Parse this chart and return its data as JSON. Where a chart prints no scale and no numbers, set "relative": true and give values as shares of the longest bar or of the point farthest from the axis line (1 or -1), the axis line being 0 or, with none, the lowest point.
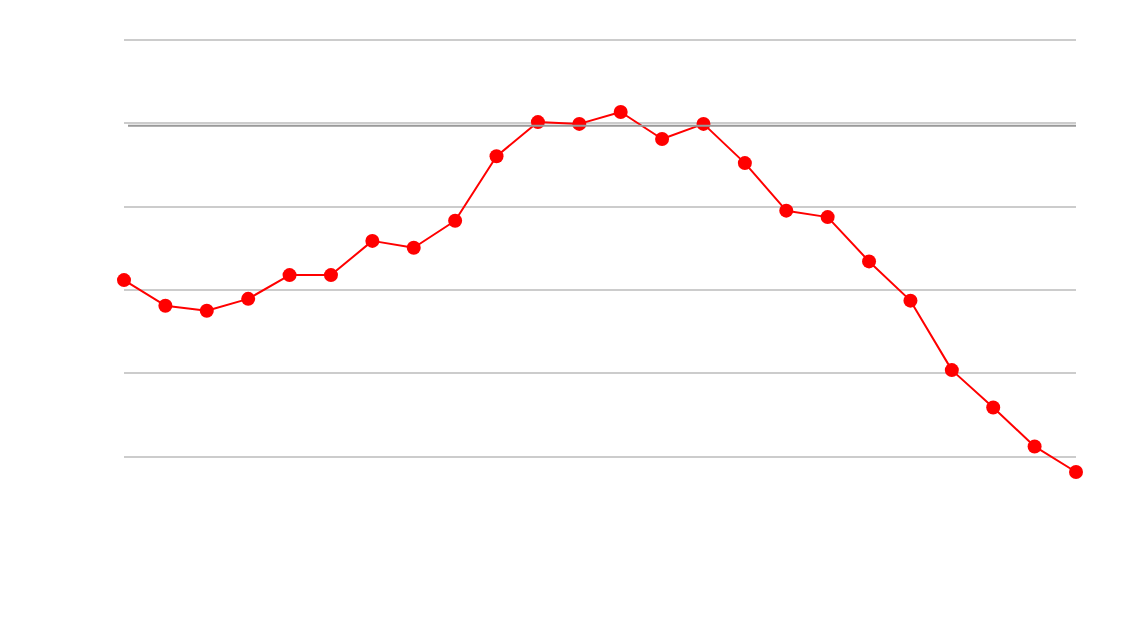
{
  "chart_data": {
    "type": "line",
    "relative": true,
    "categories": [
      null,
      null,
      null,
      null,
      null,
      null,
      null,
      null,
      null,
      null,
      null,
      null,
      null,
      null,
      null,
      null,
      null,
      null,
      null,
      null,
      null,
      null,
      null,
      null
    ],
    "series": [
      {
        "color": "#ff0000",
        "values": [
          0.533,
          0.462,
          0.448,
          0.481,
          0.547,
          0.547,
          0.642,
          0.623,
          0.698,
          0.877,
          0.972,
          0.967,
          1,
          0.925,
          0.967,
          0.858,
          0.726,
          0.708,
          0.585,
          0.476,
          0.283,
          0.179,
          0.071,
          0
        ]
      }
    ],
    "ref_lines": [
      {
        "axis": "y",
        "value": 0.962,
        "color": "#999999"
      }
    ],
    "grid": "y",
    "marker": "circle",
    "line_style": "solid",
    "legend": false
  }
}
